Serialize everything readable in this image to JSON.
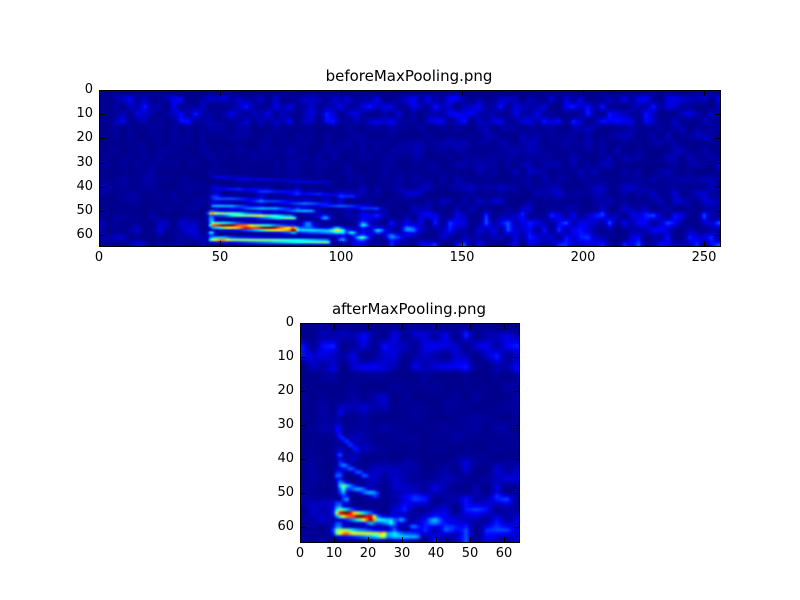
{
  "figure": {
    "background": "#ffffff",
    "axes_color": "#000000",
    "heatmap_low_color": "#00008c",
    "heatmap_high_color": "#800000"
  },
  "chart_data": [
    {
      "type": "heatmap",
      "title": "beforeMaxPooling.png",
      "colormap": "jet",
      "x_range": [
        0,
        256
      ],
      "y_range": [
        0,
        64
      ],
      "x_ticks": [
        0,
        50,
        100,
        150,
        200,
        250
      ],
      "y_ticks": [
        0,
        10,
        20,
        30,
        40,
        50,
        60
      ],
      "base_value": 0.012,
      "noise_seed": 1337,
      "noise_regions": [
        {
          "x0": 0,
          "x1": 256,
          "y0": 0,
          "y1": 64,
          "amp": 0.02
        },
        {
          "x0": 0,
          "x1": 256,
          "y0": 2,
          "y1": 14,
          "amp": 0.07
        },
        {
          "x0": 100,
          "x1": 256,
          "y0": 50,
          "y1": 64,
          "amp": 0.11
        },
        {
          "x0": 100,
          "x1": 256,
          "y0": 40,
          "y1": 50,
          "amp": 0.035
        },
        {
          "x0": 45,
          "x1": 100,
          "y0": 40,
          "y1": 52,
          "amp": 0.04
        },
        {
          "x0": 0,
          "x1": 45,
          "y0": 52,
          "y1": 64,
          "amp": 0.04
        },
        {
          "x0": 130,
          "x1": 256,
          "y0": 14,
          "y1": 40,
          "amp": 0.015
        }
      ],
      "streaks": [
        {
          "x0": 46.5,
          "y0": 55.3,
          "x1": 80,
          "y1": 57.2,
          "w": 1.15,
          "v": 0.78
        },
        {
          "x0": 46.0,
          "y0": 50.4,
          "x1": 80,
          "y1": 52.4,
          "w": 0.85,
          "v": 0.5
        },
        {
          "x0": 46.0,
          "y0": 61.2,
          "x1": 94,
          "y1": 62.3,
          "w": 0.9,
          "v": 0.5
        },
        {
          "x0": 46.5,
          "y0": 47.3,
          "x1": 88,
          "y1": 49.6,
          "w": 0.7,
          "v": 0.26
        },
        {
          "x0": 46.5,
          "y0": 44.0,
          "x1": 115,
          "y1": 48.5,
          "w": 0.7,
          "v": 0.17
        },
        {
          "x0": 46.5,
          "y0": 40.0,
          "x1": 105,
          "y1": 43.5,
          "w": 0.65,
          "v": 0.12
        },
        {
          "x0": 47.0,
          "y0": 35.5,
          "x1": 95,
          "y1": 38.0,
          "w": 0.6,
          "v": 0.08
        },
        {
          "x0": 80.0,
          "y0": 57.2,
          "x1": 100,
          "y1": 58.2,
          "w": 1.2,
          "v": 0.32
        }
      ],
      "blobs": [
        {
          "x": 53,
          "y": 55.7,
          "sx": 3.5,
          "sy": 0.8,
          "v": 0.3
        },
        {
          "x": 60,
          "y": 56.1,
          "sx": 2.5,
          "sy": 0.8,
          "v": 0.22
        },
        {
          "x": 70,
          "y": 56.7,
          "sx": 3.5,
          "sy": 0.8,
          "v": 0.3
        },
        {
          "x": 46,
          "y": 53.0,
          "sx": 1.2,
          "sy": 0.8,
          "v": 0.4
        },
        {
          "x": 46,
          "y": 58.8,
          "sx": 1.4,
          "sy": 0.7,
          "v": 0.45
        },
        {
          "x": 45.5,
          "y": 50.5,
          "sx": 1.2,
          "sy": 0.7,
          "v": 0.3
        },
        {
          "x": 50,
          "y": 61.4,
          "sx": 3.0,
          "sy": 0.8,
          "v": 0.25
        },
        {
          "x": 86,
          "y": 55.0,
          "sx": 2.0,
          "sy": 1.0,
          "v": 0.28
        },
        {
          "x": 93,
          "y": 52.3,
          "sx": 2.0,
          "sy": 0.9,
          "v": 0.3
        },
        {
          "x": 98,
          "y": 57.2,
          "sx": 2.2,
          "sy": 1.0,
          "v": 0.38
        },
        {
          "x": 104,
          "y": 58.6,
          "sx": 2.0,
          "sy": 0.9,
          "v": 0.33
        },
        {
          "x": 100,
          "y": 61.2,
          "sx": 2.0,
          "sy": 0.8,
          "v": 0.3
        },
        {
          "x": 109,
          "y": 55.3,
          "sx": 2.0,
          "sy": 0.9,
          "v": 0.26
        },
        {
          "x": 108,
          "y": 60.6,
          "sx": 2.2,
          "sy": 0.8,
          "v": 0.27
        },
        {
          "x": 115,
          "y": 57.8,
          "sx": 2.0,
          "sy": 0.9,
          "v": 0.22
        },
        {
          "x": 120,
          "y": 60.0,
          "sx": 2.5,
          "sy": 1.0,
          "v": 0.18
        },
        {
          "x": 127,
          "y": 57.0,
          "sx": 2.5,
          "sy": 1.0,
          "v": 0.15
        }
      ]
    },
    {
      "type": "heatmap",
      "title": "afterMaxPooling.png",
      "colormap": "jet",
      "x_range": [
        0,
        64
      ],
      "y_range": [
        0,
        64
      ],
      "x_ticks": [
        0,
        10,
        20,
        30,
        40,
        50,
        60
      ],
      "y_ticks": [
        0,
        10,
        20,
        30,
        40,
        50,
        60
      ],
      "base_value": 0.012,
      "noise_seed": 4242,
      "noise_regions": [
        {
          "x0": 0,
          "x1": 64,
          "y0": 0,
          "y1": 64,
          "amp": 0.02
        },
        {
          "x0": 0,
          "x1": 64,
          "y0": 2,
          "y1": 14,
          "amp": 0.07
        },
        {
          "x0": 26,
          "x1": 64,
          "y0": 50,
          "y1": 64,
          "amp": 0.11
        },
        {
          "x0": 26,
          "x1": 64,
          "y0": 40,
          "y1": 50,
          "amp": 0.04
        },
        {
          "x0": 0,
          "x1": 10,
          "y0": 52,
          "y1": 64,
          "amp": 0.04
        },
        {
          "x0": 10,
          "x1": 26,
          "y0": 20,
          "y1": 50,
          "amp": 0.03
        }
      ],
      "streaks": [
        {
          "x0": 11.3,
          "y0": 55.4,
          "x1": 20.5,
          "y1": 57.1,
          "w": 1.25,
          "v": 0.78
        },
        {
          "x0": 10.8,
          "y0": 61.0,
          "x1": 24.0,
          "y1": 61.9,
          "w": 1.0,
          "v": 0.55
        },
        {
          "x0": 24.0,
          "y0": 61.9,
          "x1": 34.0,
          "y1": 62.3,
          "w": 0.9,
          "v": 0.3
        },
        {
          "x0": 11.5,
          "y0": 47.0,
          "x1": 22.0,
          "y1": 50.0,
          "w": 0.8,
          "v": 0.28
        },
        {
          "x0": 11.5,
          "y0": 41.0,
          "x1": 19.0,
          "y1": 44.5,
          "w": 0.7,
          "v": 0.2
        },
        {
          "x0": 11.5,
          "y0": 33.0,
          "x1": 16.5,
          "y1": 37.0,
          "w": 0.7,
          "v": 0.15
        },
        {
          "x0": 20.5,
          "y0": 57.1,
          "x1": 26.5,
          "y1": 58.1,
          "w": 1.1,
          "v": 0.35
        }
      ],
      "blobs": [
        {
          "x": 13.5,
          "y": 55.8,
          "sx": 1.6,
          "sy": 0.75,
          "v": 0.32
        },
        {
          "x": 17.5,
          "y": 56.5,
          "sx": 1.6,
          "sy": 0.75,
          "v": 0.3
        },
        {
          "x": 12.3,
          "y": 48.7,
          "sx": 1.0,
          "sy": 1.6,
          "v": 0.35
        },
        {
          "x": 13.2,
          "y": 51.5,
          "sx": 0.9,
          "sy": 1.0,
          "v": 0.3
        },
        {
          "x": 11.0,
          "y": 59.0,
          "sx": 1.0,
          "sy": 0.7,
          "v": 0.35
        },
        {
          "x": 11.0,
          "y": 53.0,
          "sx": 0.9,
          "sy": 0.8,
          "v": 0.3
        },
        {
          "x": 11.0,
          "y": 44.5,
          "sx": 0.8,
          "sy": 1.4,
          "v": 0.28
        },
        {
          "x": 11.2,
          "y": 38.5,
          "sx": 0.7,
          "sy": 1.2,
          "v": 0.2
        },
        {
          "x": 11.0,
          "y": 31.0,
          "sx": 0.7,
          "sy": 1.4,
          "v": 0.14
        },
        {
          "x": 11.5,
          "y": 26.0,
          "sx": 0.6,
          "sy": 1.0,
          "v": 0.1
        },
        {
          "x": 13.0,
          "y": 61.2,
          "sx": 2.0,
          "sy": 0.8,
          "v": 0.3
        },
        {
          "x": 29.5,
          "y": 57.5,
          "sx": 1.4,
          "sy": 0.9,
          "v": 0.28
        },
        {
          "x": 33.0,
          "y": 59.5,
          "sx": 1.5,
          "sy": 0.9,
          "v": 0.2
        },
        {
          "x": 39.0,
          "y": 58.0,
          "sx": 1.8,
          "sy": 1.0,
          "v": 0.15
        },
        {
          "x": 45.0,
          "y": 60.0,
          "sx": 2.0,
          "sy": 1.0,
          "v": 0.12
        }
      ]
    }
  ]
}
